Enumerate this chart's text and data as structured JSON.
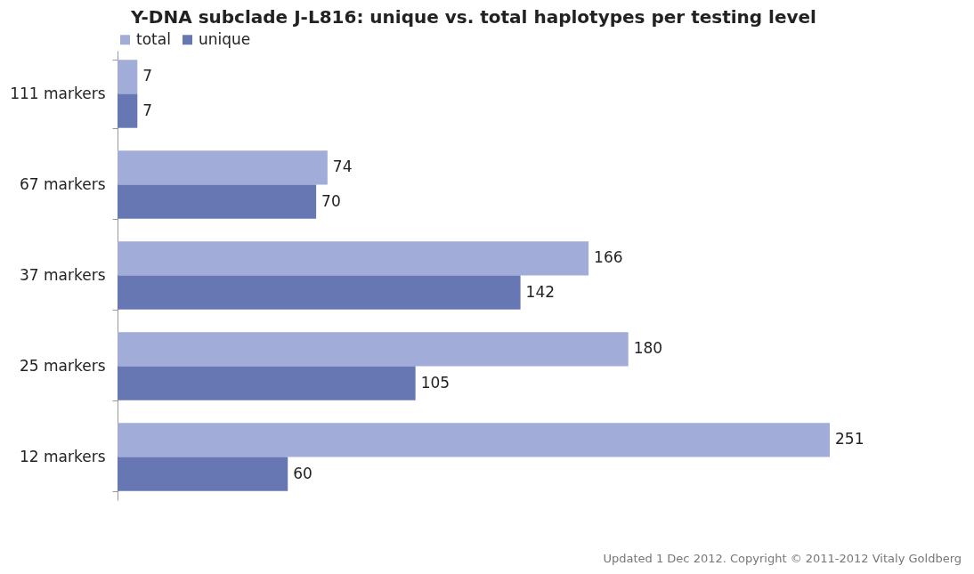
{
  "chart_data": {
    "type": "bar",
    "orientation": "horizontal",
    "title": "Y-DNA subclade J-L816: unique vs. total haplotypes per testing level",
    "categories": [
      "111 markers",
      "67 markers",
      "37 markers",
      "25 markers",
      "12 markers"
    ],
    "series": [
      {
        "name": "total",
        "color": "#a2acd8",
        "values": [
          7,
          74,
          166,
          180,
          251
        ]
      },
      {
        "name": "unique",
        "color": "#6677b3",
        "values": [
          7,
          70,
          142,
          105,
          60
        ]
      }
    ],
    "data_labels": true,
    "legend": "top",
    "annotations": [
      "Updated 1 Dec 2012. Copyright © 2011-2012 Vitaly Goldberg"
    ]
  }
}
